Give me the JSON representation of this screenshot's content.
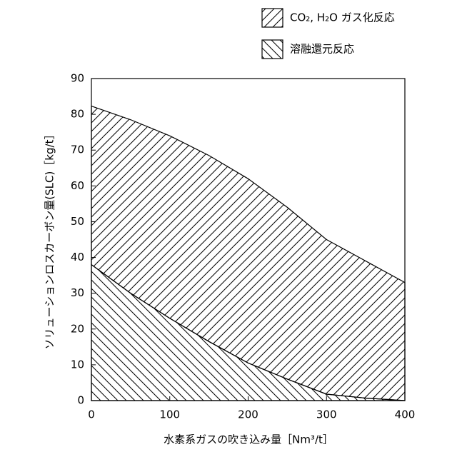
{
  "chart_data": {
    "type": "stacked_area",
    "x_label": "水素系ガスの吹き込み量［Nm³/t］",
    "y_label": "ソリューションロスカーボン量(SLC)［kg/t］",
    "x": [
      0,
      50,
      100,
      150,
      200,
      250,
      300,
      350,
      400
    ],
    "series": [
      {
        "name": "溶融還元反応",
        "color": "#000000",
        "hatch": "\\",
        "values": [
          38,
          30,
          23,
          16.5,
          10.5,
          6,
          1.8,
          0.7,
          0
        ]
      },
      {
        "name": "CO₂, H₂O ガス化反応",
        "color": "#000000",
        "hatch": "/",
        "values": [
          44.3,
          48.5,
          51,
          52,
          51.5,
          48,
          43.2,
          38.3,
          33
        ]
      }
    ],
    "xlim": [
      0,
      400
    ],
    "xticks": [
      0,
      100,
      200,
      300,
      400
    ],
    "ylim": [
      0,
      90
    ],
    "yticks": [
      0,
      10,
      20,
      30,
      40,
      50,
      60,
      70,
      80,
      90
    ],
    "legend": "top-right"
  }
}
